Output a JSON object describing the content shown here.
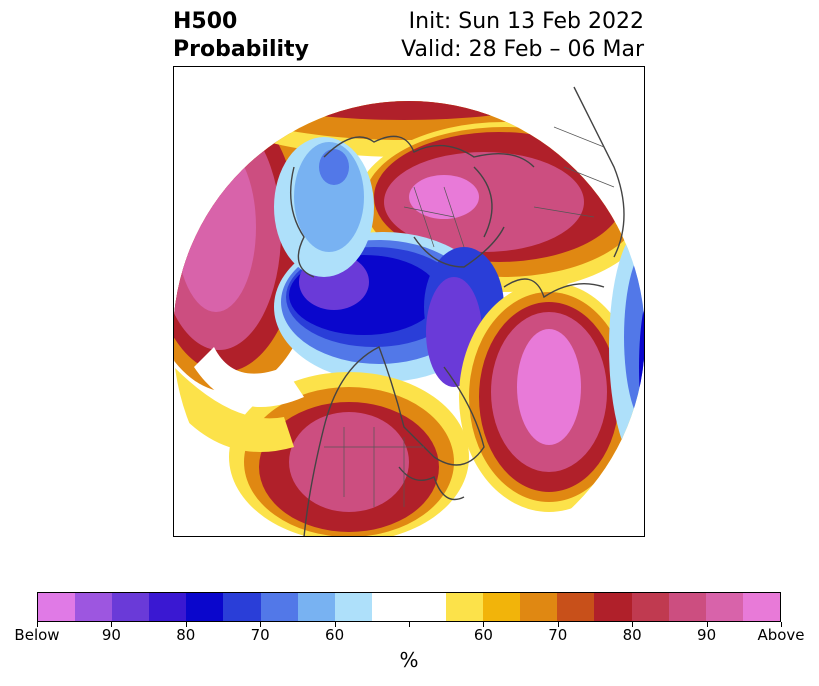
{
  "title": {
    "line1_left": "H500",
    "line2_left": "Probability",
    "line1_right": "Init: Sun 13 Feb 2022",
    "line2_right": "Valid: 28 Feb – 06 Mar"
  },
  "colorbar": {
    "label": "%",
    "colors": [
      "#e07ae6",
      "#9d56e0",
      "#6a3ad8",
      "#3a18d2",
      "#0a06cc",
      "#2a3ed8",
      "#5278e8",
      "#78b2f2",
      "#aee0fa",
      "#ffffff",
      "#ffffff",
      "#fce24a",
      "#f2b40a",
      "#e08812",
      "#c8501a",
      "#b0202a",
      "#c03a50",
      "#cc4e80",
      "#d863aa",
      "#e87ad8"
    ],
    "ticks": [
      "Below",
      "90",
      "80",
      "70",
      "60",
      "",
      "60",
      "70",
      "80",
      "90",
      "Above"
    ]
  },
  "map": {
    "projection": "north-polar-stereographic",
    "levels": [
      {
        "category": "below",
        "percent": 100,
        "color": "#e07ae6"
      },
      {
        "category": "below",
        "percent": 90,
        "color": "#6a3ad8"
      },
      {
        "category": "below",
        "percent": 80,
        "color": "#0a06cc"
      },
      {
        "category": "below",
        "percent": 70,
        "color": "#5278e8"
      },
      {
        "category": "below",
        "percent": 60,
        "color": "#aee0fa"
      },
      {
        "category": "above",
        "percent": 60,
        "color": "#fce24a"
      },
      {
        "category": "above",
        "percent": 70,
        "color": "#e08812"
      },
      {
        "category": "above",
        "percent": 80,
        "color": "#b0202a"
      },
      {
        "category": "above",
        "percent": 90,
        "color": "#cc4e80"
      },
      {
        "category": "above",
        "percent": 100,
        "color": "#e87ad8"
      }
    ]
  }
}
